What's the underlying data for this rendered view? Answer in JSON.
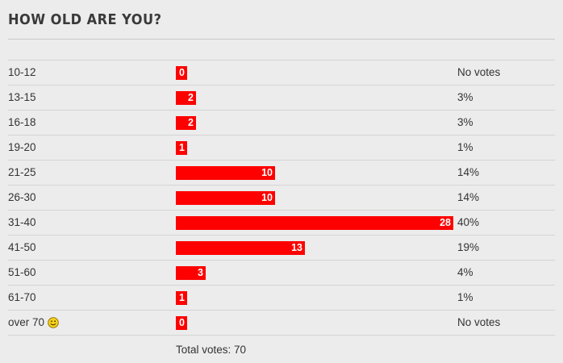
{
  "poll": {
    "title": "HOW OLD ARE YOU?",
    "total_votes": "Total votes: 70",
    "max_votes": 28,
    "accent_color": "#ff0000",
    "rows": [
      {
        "label": "10-12",
        "votes": 0,
        "votes_text": "0",
        "pct": "No votes"
      },
      {
        "label": "13-15",
        "votes": 2,
        "votes_text": "2",
        "pct": "3%"
      },
      {
        "label": "16-18",
        "votes": 2,
        "votes_text": "2",
        "pct": "3%"
      },
      {
        "label": "19-20",
        "votes": 1,
        "votes_text": "1",
        "pct": "1%"
      },
      {
        "label": "21-25",
        "votes": 10,
        "votes_text": "10",
        "pct": "14%"
      },
      {
        "label": "26-30",
        "votes": 10,
        "votes_text": "10",
        "pct": "14%"
      },
      {
        "label": "31-40",
        "votes": 28,
        "votes_text": "28",
        "pct": "40%"
      },
      {
        "label": "41-50",
        "votes": 13,
        "votes_text": "13",
        "pct": "19%"
      },
      {
        "label": "51-60",
        "votes": 3,
        "votes_text": "3",
        "pct": "4%"
      },
      {
        "label": "61-70",
        "votes": 1,
        "votes_text": "1",
        "pct": "1%"
      },
      {
        "label": "over 70",
        "votes": 0,
        "votes_text": "0",
        "pct": "No votes",
        "icon": "smiley-icon"
      }
    ]
  }
}
